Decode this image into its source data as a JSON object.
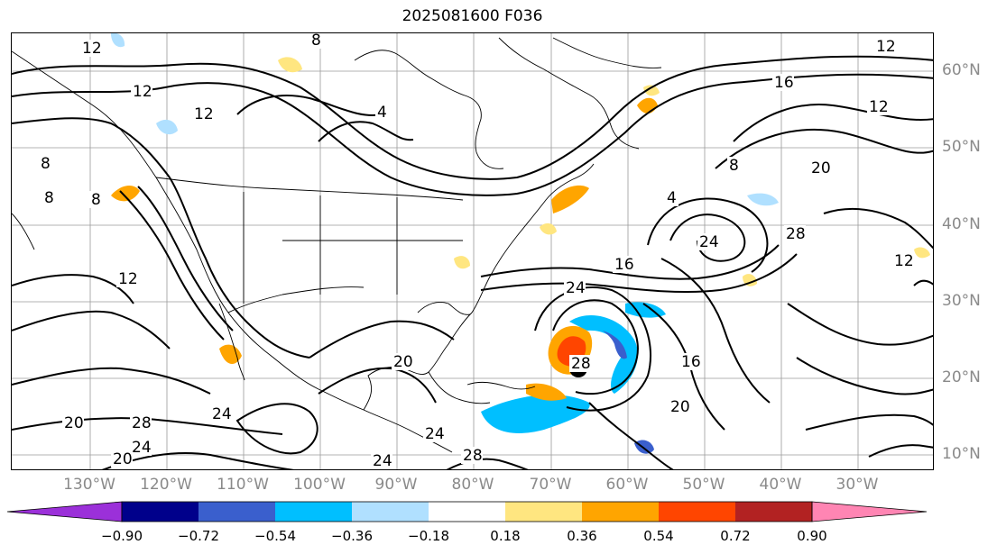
{
  "title": "2025081600 F036",
  "lat_labels": [
    "60°N",
    "50°N",
    "40°N",
    "30°N",
    "20°N",
    "10°N"
  ],
  "lon_labels": [
    "130°W",
    "120°W",
    "110°W",
    "100°W",
    "90°W",
    "80°W",
    "70°W",
    "60°W",
    "50°W",
    "40°W",
    "30°W"
  ],
  "contour_labels": [
    "12",
    "12",
    "12",
    "8",
    "8",
    "4",
    "8",
    "12",
    "16",
    "16",
    "20",
    "20",
    "24",
    "24",
    "28",
    "24",
    "16",
    "20",
    "24",
    "28",
    "28",
    "20",
    "24",
    "28",
    "20",
    "24",
    "12",
    "12",
    "8",
    "8",
    "12",
    "4"
  ],
  "colorbar": {
    "ticks": [
      "−0.90",
      "−0.72",
      "−0.54",
      "−0.36",
      "−0.18",
      "0.18",
      "0.36",
      "0.54",
      "0.72",
      "0.90"
    ],
    "colors": [
      "#9b30d9",
      "#00008b",
      "#3a5fcd",
      "#00bfff",
      "#b0e0ff",
      "#ffffff",
      "#ffe680",
      "#ffa500",
      "#ff4500",
      "#b22222",
      "#ff85b3"
    ]
  },
  "colors": {
    "land_line": "#000000",
    "contour": "#000000",
    "grid": "#9a9a9a",
    "axis_label": "#8a8a8a"
  }
}
